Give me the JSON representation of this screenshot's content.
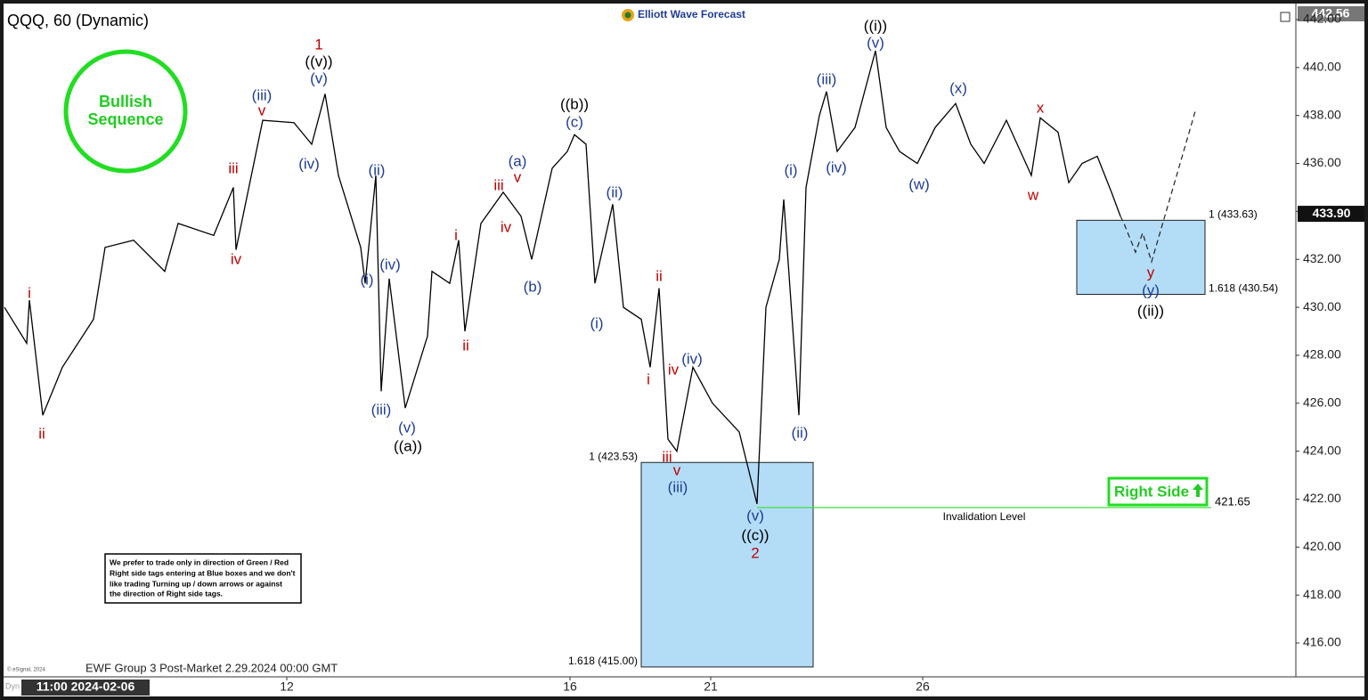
{
  "chart_data": {
    "type": "line",
    "title": "QQQ, 60 (Dynamic)",
    "brand": "Elliott Wave Forecast",
    "badge": [
      "Bullish",
      "Sequence"
    ],
    "right_side": "Right Side",
    "footer": "EWF Group 3 Post-Market 2.29.2024 00:00 GMT",
    "copyright": "© eSignal, 2024",
    "dyn": "Dyn",
    "start_date": "11:00 2024-02-06",
    "note": [
      "We prefer to trade only in direction of Green / Red",
      "Right side tags entering at Blue boxes and we don't",
      "like trading Turning up / down arrows or against",
      "the direction of Right side tags."
    ],
    "top_price": 442.56,
    "last_price": {
      "value": 433.9,
      "label": "433.90"
    },
    "color": "#000000",
    "xlim": [
      5,
      1455
    ],
    "ylim": [
      414.96,
      442.52
    ],
    "xticks": [
      {
        "value": 322,
        "label": "12"
      },
      {
        "value": 640,
        "label": "16"
      },
      {
        "value": 798,
        "label": "21"
      },
      {
        "value": 1036,
        "label": "26"
      }
    ],
    "yticks": [
      {
        "value": 416,
        "label": "416.00"
      },
      {
        "value": 418,
        "label": "418.00"
      },
      {
        "value": 420,
        "label": "420.00"
      },
      {
        "value": 422,
        "label": "422.00"
      },
      {
        "value": 424,
        "label": "424.00"
      },
      {
        "value": 426,
        "label": "426.00"
      },
      {
        "value": 428,
        "label": "428.00"
      },
      {
        "value": 430,
        "label": "430.00"
      },
      {
        "value": 432,
        "label": "432.00"
      },
      {
        "value": 434,
        "label": "434.00"
      },
      {
        "value": 436,
        "label": "436.00"
      },
      {
        "value": 438,
        "label": "438.00"
      },
      {
        "value": 440,
        "label": "440.00"
      },
      {
        "value": 442,
        "label": "442.00"
      }
    ],
    "x": [
      5,
      30,
      33,
      48,
      70,
      105,
      118,
      150,
      185,
      200,
      240,
      262,
      265,
      295,
      330,
      350,
      365,
      380,
      405,
      410,
      422,
      428,
      437,
      455,
      480,
      485,
      505,
      515,
      522,
      540,
      565,
      585,
      597,
      620,
      637,
      645,
      658,
      668,
      688,
      700,
      720,
      730,
      740,
      750,
      760,
      778,
      800,
      830,
      850,
      860,
      875,
      880,
      897,
      905,
      920,
      928,
      940,
      960,
      983,
      995,
      1010,
      1030,
      1050,
      1073,
      1090,
      1105,
      1130,
      1158,
      1168,
      1188,
      1200,
      1215,
      1232,
      1248,
      1258
    ],
    "values": [
      430,
      428.5,
      430.3,
      425.5,
      427.5,
      429.5,
      432.5,
      432.8,
      431.5,
      433.5,
      433,
      435,
      432.4,
      437.8,
      437.7,
      436.8,
      438.9,
      435.5,
      432.5,
      431,
      435.5,
      426.5,
      431.2,
      425.8,
      428.8,
      431.5,
      431,
      432.8,
      429,
      433.5,
      434.8,
      433.8,
      432,
      435.8,
      436.5,
      437.2,
      436.8,
      431,
      434.3,
      430,
      429.5,
      427.5,
      430.8,
      424.5,
      424,
      427.5,
      426,
      424.8,
      421.8,
      430,
      432,
      434.5,
      425.5,
      435,
      438,
      439,
      436.5,
      437.5,
      440.7,
      437.5,
      436.5,
      436,
      437.5,
      438.5,
      436.8,
      436,
      437.8,
      435.5,
      437.9,
      437.3,
      435.2,
      436,
      436.3,
      434.8,
      433.8
    ],
    "projection": {
      "x": [
        1258,
        1262,
        1275,
        1283,
        1293,
        1343
      ],
      "values": [
        433.8,
        433.5,
        432.3,
        433.1,
        431.9,
        438.3
      ]
    },
    "boxes": [
      {
        "x": [
          720,
          913
        ],
        "top": 423.53,
        "bottom": 415.0,
        "labels": [
          "1 (423.53)",
          "1.618 (415.00)"
        ],
        "color": "#b3dcf7"
      },
      {
        "x": [
          1209,
          1353
        ],
        "top": 433.63,
        "bottom": 430.54,
        "labels": [
          "1 (433.63)",
          "1.618 (430.54)"
        ],
        "color": "#b3dcf7"
      }
    ],
    "invalidation": {
      "value": 421.65,
      "label": "421.65",
      "text": "Invalidation Level",
      "x": [
        850,
        1360
      ],
      "color": "#44dd44"
    },
    "annotations": [
      {
        "text": "i",
        "color": "#c00000",
        "x": 33,
        "y": 430.56
      },
      {
        "text": "ii",
        "color": "#c00000",
        "x": 47,
        "y": 424.69
      },
      {
        "text": "iii",
        "color": "#c00000",
        "x": 262,
        "y": 435.76
      },
      {
        "text": "iv",
        "color": "#c00000",
        "x": 265,
        "y": 431.97
      },
      {
        "text": "v",
        "color": "#c00000",
        "x": 294,
        "y": 438.18
      },
      {
        "text": "(iii)",
        "color": "#1f3c99",
        "x": 294,
        "y": 438.81
      },
      {
        "text": "(iv)",
        "color": "#1f3c99",
        "x": 347,
        "y": 435.95
      },
      {
        "text": "(v)",
        "color": "#1f3c99",
        "x": 358,
        "y": 439.51
      },
      {
        "text": "((v))",
        "color": "#000000",
        "x": 358,
        "y": 440.22
      },
      {
        "text": "1",
        "color": "#c00000",
        "x": 358,
        "y": 440.93
      },
      {
        "text": "(ii)",
        "color": "#1f3c99",
        "x": 423,
        "y": 435.69
      },
      {
        "text": "(i)",
        "color": "#1f3c99",
        "x": 412,
        "y": 431.12
      },
      {
        "text": "(iv)",
        "color": "#1f3c99",
        "x": 438,
        "y": 431.75
      },
      {
        "text": "(iii)",
        "color": "#1f3c99",
        "x": 428,
        "y": 425.7
      },
      {
        "text": "(v)",
        "color": "#1f3c99",
        "x": 457,
        "y": 424.95
      },
      {
        "text": "((a))",
        "color": "#000000",
        "x": 458,
        "y": 424.17
      },
      {
        "text": "i",
        "color": "#c00000",
        "x": 512,
        "y": 432.98
      },
      {
        "text": "ii",
        "color": "#c00000",
        "x": 523,
        "y": 428.37
      },
      {
        "text": "iii",
        "color": "#c00000",
        "x": 560,
        "y": 435.06
      },
      {
        "text": "iv",
        "color": "#c00000",
        "x": 568,
        "y": 433.31
      },
      {
        "text": "v",
        "color": "#c00000",
        "x": 581,
        "y": 435.39
      },
      {
        "text": "(a)",
        "color": "#1f3c99",
        "x": 581,
        "y": 436.06
      },
      {
        "text": "(b)",
        "color": "#1f3c99",
        "x": 598,
        "y": 430.82
      },
      {
        "text": "(c)",
        "color": "#1f3c99",
        "x": 645,
        "y": 437.69
      },
      {
        "text": "((b))",
        "color": "#000000",
        "x": 645,
        "y": 438.44
      },
      {
        "text": "(i)",
        "color": "#1f3c99",
        "x": 670,
        "y": 429.3
      },
      {
        "text": "(ii)",
        "color": "#1f3c99",
        "x": 690,
        "y": 434.76
      },
      {
        "text": "ii",
        "color": "#c00000",
        "x": 740,
        "y": 431.27
      },
      {
        "text": "i",
        "color": "#c00000",
        "x": 728,
        "y": 426.96
      },
      {
        "text": "iv",
        "color": "#c00000",
        "x": 756,
        "y": 427.37
      },
      {
        "text": "(iv)",
        "color": "#1f3c99",
        "x": 777,
        "y": 427.81
      },
      {
        "text": "iii",
        "color": "#c00000",
        "x": 749,
        "y": 423.73
      },
      {
        "text": "v",
        "color": "#c00000",
        "x": 760,
        "y": 423.17
      },
      {
        "text": "(iii)",
        "color": "#1f3c99",
        "x": 761,
        "y": 422.46
      },
      {
        "text": "(v)",
        "color": "#1f3c99",
        "x": 848,
        "y": 421.27
      },
      {
        "text": "((c))",
        "color": "#000000",
        "x": 848,
        "y": 420.46
      },
      {
        "text": "2",
        "color": "#c00000",
        "x": 848,
        "y": 419.71
      },
      {
        "text": "(ii)",
        "color": "#1f3c99",
        "x": 898,
        "y": 424.73
      },
      {
        "text": "(i)",
        "color": "#1f3c99",
        "x": 888,
        "y": 435.69
      },
      {
        "text": "(iv)",
        "color": "#1f3c99",
        "x": 939,
        "y": 435.8
      },
      {
        "text": "(iii)",
        "color": "#1f3c99",
        "x": 928,
        "y": 439.48
      },
      {
        "text": "(v)",
        "color": "#1f3c99",
        "x": 983,
        "y": 441.0
      },
      {
        "text": "((i))",
        "color": "#000000",
        "x": 983,
        "y": 441.71
      },
      {
        "text": "(w)",
        "color": "#1f3c99",
        "x": 1032,
        "y": 435.09
      },
      {
        "text": "(x)",
        "color": "#1f3c99",
        "x": 1076,
        "y": 439.11
      },
      {
        "text": "w",
        "color": "#c00000",
        "x": 1160,
        "y": 434.65
      },
      {
        "text": "x",
        "color": "#c00000",
        "x": 1168,
        "y": 438.29
      },
      {
        "text": "y",
        "color": "#c00000",
        "x": 1292,
        "y": 431.42
      },
      {
        "text": "(y)",
        "color": "#1f3c99",
        "x": 1292,
        "y": 430.67
      },
      {
        "text": "((ii))",
        "color": "#000000",
        "x": 1292,
        "y": 429.82
      }
    ]
  }
}
